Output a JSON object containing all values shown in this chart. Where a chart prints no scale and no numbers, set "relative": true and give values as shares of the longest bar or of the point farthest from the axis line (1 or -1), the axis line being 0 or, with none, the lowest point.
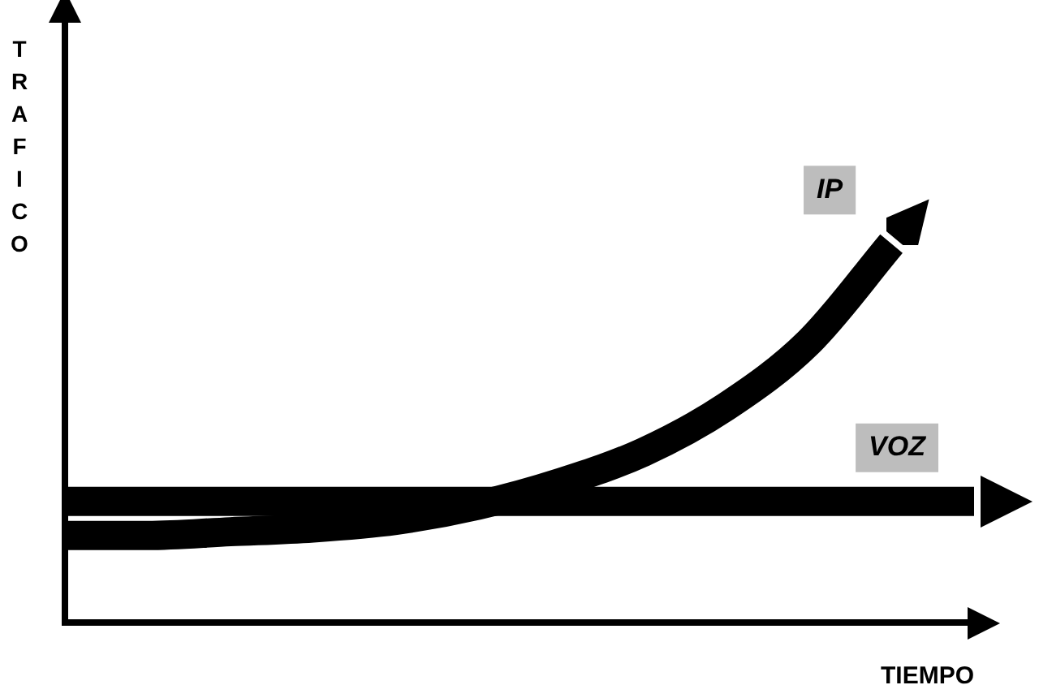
{
  "chart_data": {
    "type": "line",
    "relative": true,
    "xlabel": "TIEMPO",
    "ylabel": "TRAFICO",
    "legend": false,
    "marker": "none",
    "line_style": "solid",
    "grid": false,
    "categories": [
      null,
      null,
      null,
      null,
      null,
      null,
      null,
      null,
      null,
      null,
      null,
      null
    ],
    "series": [
      {
        "name": "IP",
        "color": "#000000",
        "values": [
          0.23,
          0.23,
          0.24,
          0.25,
          0.27,
          0.31,
          0.37,
          0.45,
          0.57,
          0.74,
          1.0,
          null
        ]
      },
      {
        "name": "VOZ",
        "color": "#000000",
        "values": [
          0.32,
          0.32,
          0.32,
          0.32,
          0.32,
          0.32,
          0.32,
          0.32,
          0.32,
          0.32,
          0.32,
          0.32
        ]
      }
    ]
  }
}
